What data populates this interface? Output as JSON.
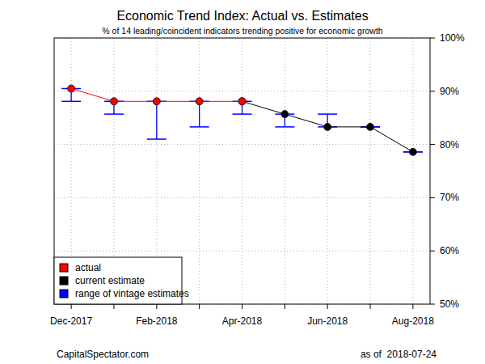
{
  "chart_data": {
    "type": "line",
    "title": "Economic Trend Index: Actual vs. Estimates",
    "subtitle": "% of 14 leading/coincident indicators trending positive for economic growth",
    "annotations": [
      "CapitalSpectator.com",
      "as of  2018-07-24"
    ],
    "categories": [
      "Dec-2017",
      null,
      "Feb-2018",
      null,
      "Apr-2018",
      null,
      "Jun-2018",
      null,
      "Aug-2018"
    ],
    "series": [
      {
        "name": "actual",
        "color": "#ff0000",
        "marker": "circle",
        "line_style": "solid",
        "values": [
          90.5,
          88.1,
          88.1,
          88.1,
          88.1,
          null,
          null,
          null,
          null
        ]
      },
      {
        "name": "current estimate",
        "color": "#000000",
        "marker": "circle",
        "line_style": "solid",
        "values": [
          null,
          null,
          null,
          null,
          88.1,
          85.7,
          83.3,
          83.3,
          78.6
        ]
      },
      {
        "name": "range of vintage estimates",
        "color": "#0000ff",
        "type": "range",
        "low": [
          88.1,
          85.7,
          81.0,
          83.3,
          85.7,
          83.3,
          83.3,
          83.3,
          78.6
        ],
        "high": [
          90.5,
          88.1,
          88.1,
          88.1,
          88.1,
          85.7,
          85.7,
          83.3,
          78.6
        ]
      }
    ],
    "ylim": [
      50,
      100
    ],
    "yticks": [
      {
        "value": 50,
        "label": "50%"
      },
      {
        "value": 60,
        "label": "60%"
      },
      {
        "value": 70,
        "label": "70%"
      },
      {
        "value": 80,
        "label": "80%"
      },
      {
        "value": 90,
        "label": "90%"
      },
      {
        "value": 100,
        "label": "100%"
      }
    ],
    "grid": true,
    "legend": "bottom left"
  }
}
